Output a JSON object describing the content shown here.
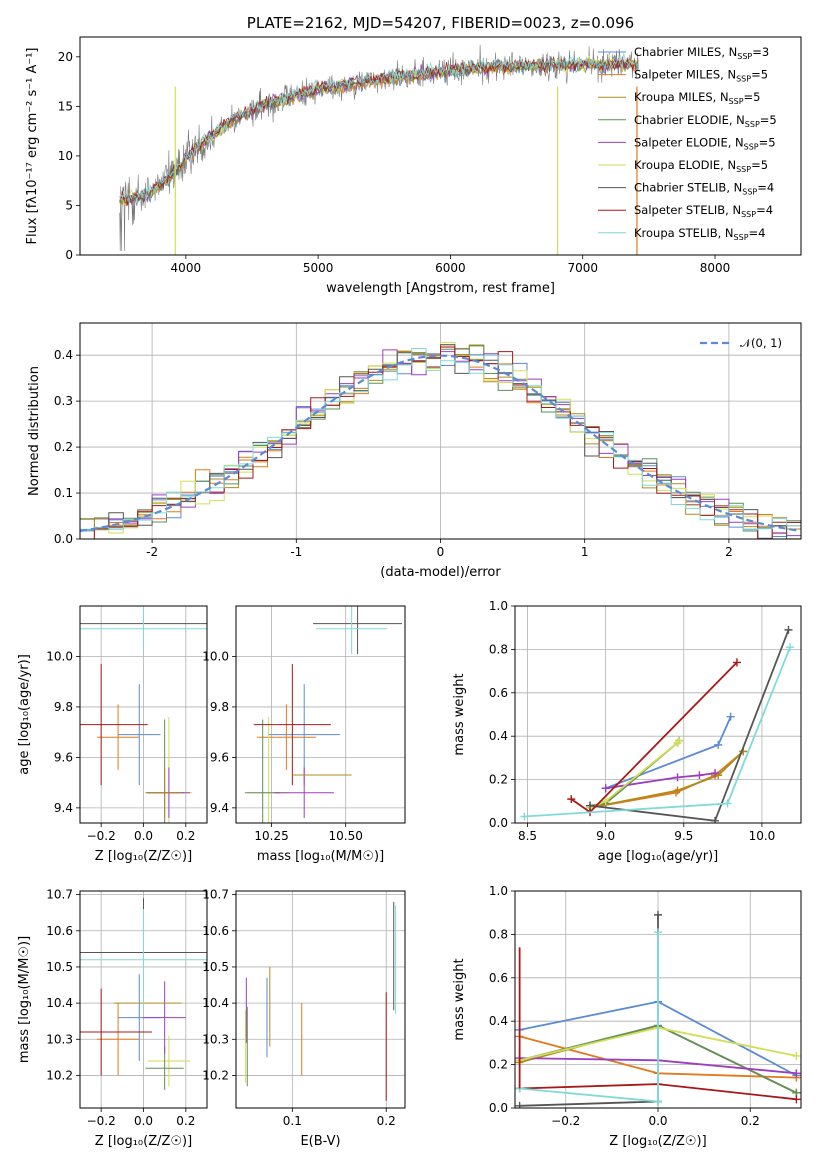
{
  "colors": {
    "Chabrier MILES": "#5b8bd6",
    "Salpeter MILES": "#e07a1f",
    "Kroupa MILES": "#b38a1a",
    "Chabrier ELODIE": "#5f8f5a",
    "Salpeter ELODIE": "#9b3fbf",
    "Kroupa ELODIE": "#d2de55",
    "Chabrier STELIB": "#555555",
    "Salpeter STELIB": "#a81818",
    "Kroupa STELIB": "#7fdada"
  },
  "chart_data": [
    {
      "id": "spectrum",
      "type": "line",
      "title": "PLATE=2162, MJD=54207, FIBERID=0023, z=0.096",
      "xlabel": "wavelength [Angstrom, rest frame]",
      "ylabel": "Flux [fλ10⁻¹⁷ erg cm⁻² s⁻¹ A⁻¹]",
      "xlim": [
        3200,
        8650
      ],
      "ylim": [
        0,
        22
      ],
      "xticks": [
        4000,
        5000,
        6000,
        7000,
        8000
      ],
      "yticks": [
        0,
        5,
        10,
        15,
        20
      ],
      "grid": false,
      "legend_position": "right",
      "legend": [
        {
          "label": "Chabrier MILES, N",
          "sub": "SSP",
          "suffix": "=3"
        },
        {
          "label": "Salpeter MILES, N",
          "sub": "SSP",
          "suffix": "=5"
        },
        {
          "label": "Kroupa MILES, N",
          "sub": "SSP",
          "suffix": "=5"
        },
        {
          "label": "Chabrier ELODIE, N",
          "sub": "SSP",
          "suffix": "=5"
        },
        {
          "label": "Salpeter ELODIE, N",
          "sub": "SSP",
          "suffix": "=5"
        },
        {
          "label": "Kroupa ELODIE, N",
          "sub": "SSP",
          "suffix": "=5"
        },
        {
          "label": "Chabrier STELIB, N",
          "sub": "SSP",
          "suffix": "=4"
        },
        {
          "label": "Salpeter STELIB, N",
          "sub": "SSP",
          "suffix": "=4"
        },
        {
          "label": "Kroupa STELIB, N",
          "sub": "SSP",
          "suffix": "=4"
        }
      ],
      "continuum": [
        [
          3500,
          5.5
        ],
        [
          3700,
          6.0
        ],
        [
          3850,
          7.5
        ],
        [
          3950,
          8.8
        ],
        [
          4050,
          10.5
        ],
        [
          4300,
          13.2
        ],
        [
          4600,
          15.2
        ],
        [
          5000,
          16.7
        ],
        [
          5400,
          17.6
        ],
        [
          5800,
          18.3
        ],
        [
          6200,
          18.9
        ],
        [
          6600,
          19.1
        ],
        [
          7000,
          19.2
        ],
        [
          7400,
          19.3
        ]
      ]
    },
    {
      "id": "residuals",
      "type": "histogram",
      "xlabel": "(data-model)/error",
      "ylabel": "Normed distribution",
      "xlim": [
        -2.5,
        2.5
      ],
      "ylim": [
        0,
        0.47
      ],
      "xticks": [
        -2,
        -1,
        0,
        1,
        2
      ],
      "yticks": [
        0.0,
        0.1,
        0.2,
        0.3,
        0.4
      ],
      "grid": true,
      "reference": "𝒩(0, 1)",
      "legend_position": "top-right"
    },
    {
      "id": "age-vs-Z",
      "type": "scatter",
      "xlabel": "Z [log₁₀(Z/Z☉)]",
      "ylabel": "age  [log₁₀(age/yr)]",
      "xlim": [
        -0.3,
        0.3
      ],
      "ylim": [
        9.34,
        10.2
      ],
      "xticks": [
        -0.2,
        0.0,
        0.2
      ],
      "xticklabels": [
        "−0.2",
        "0.0",
        "0.2"
      ],
      "yticks": [
        9.4,
        9.6,
        9.8,
        10.0
      ],
      "grid": true,
      "points": [
        {
          "model": "Chabrier MILES",
          "x": -0.02,
          "xerr": 0.1,
          "y": 9.69,
          "yerr": 0.2
        },
        {
          "model": "Salpeter MILES",
          "x": -0.12,
          "xerr": 0.1,
          "y": 9.68,
          "yerr": 0.13
        },
        {
          "model": "Kroupa ELODIE",
          "x": 0.12,
          "xerr": 0.11,
          "y": 9.46,
          "yerr": 0.3
        },
        {
          "model": "Chabrier ELODIE",
          "x": 0.1,
          "xerr": 0.09,
          "y": 9.46,
          "yerr": 0.29
        },
        {
          "model": "Salpeter ELODIE",
          "x": 0.12,
          "xerr": 0.1,
          "y": 9.46,
          "yerr": 0.1
        },
        {
          "model": "Kroupa MILES",
          "x": 0.1,
          "xerr": 0.08,
          "y": 9.46,
          "yerr": 0.1
        },
        {
          "model": "Chabrier STELIB",
          "x": 0.0,
          "xerr": 0.3,
          "y": 10.13,
          "yerr": 0.12
        },
        {
          "model": "Salpeter STELIB",
          "x": -0.2,
          "xerr": 0.22,
          "y": 9.73,
          "yerr": 0.24
        },
        {
          "model": "Kroupa STELIB",
          "x": 0.0,
          "xerr": 0.3,
          "y": 10.11,
          "yerr": 0.1
        },
        {
          "model": "Kroupa MILES",
          "x": 0.0,
          "xerr": 0.0,
          "y": 9.53,
          "yerr": 0.0
        }
      ]
    },
    {
      "id": "age-vs-mass",
      "type": "scatter",
      "xlabel": "mass [log₁₀(M/M☉)]",
      "ylabel": "",
      "xlim": [
        10.13,
        10.7
      ],
      "ylim": [
        9.34,
        10.2
      ],
      "xticks": [
        10.25,
        10.5
      ],
      "xticklabels": [
        "10.25",
        "10.50"
      ],
      "yticks": [
        9.4,
        9.6,
        9.8,
        10.0
      ],
      "grid": true,
      "points": [
        {
          "model": "Chabrier MILES",
          "x": 10.36,
          "xerr": 0.12,
          "y": 9.69,
          "yerr": 0.2
        },
        {
          "model": "Salpeter MILES",
          "x": 10.3,
          "xerr": 0.1,
          "y": 9.68,
          "yerr": 0.13
        },
        {
          "model": "Kroupa ELODIE",
          "x": 10.24,
          "xerr": 0.07,
          "y": 9.46,
          "yerr": 0.3
        },
        {
          "model": "Chabrier ELODIE",
          "x": 10.22,
          "xerr": 0.06,
          "y": 9.46,
          "yerr": 0.29
        },
        {
          "model": "Salpeter ELODIE",
          "x": 10.36,
          "xerr": 0.1,
          "y": 9.46,
          "yerr": 0.1
        },
        {
          "model": "Chabrier STELIB",
          "x": 10.54,
          "xerr": 0.15,
          "y": 10.13,
          "yerr": 0.12
        },
        {
          "model": "Salpeter STELIB",
          "x": 10.32,
          "xerr": 0.13,
          "y": 9.73,
          "yerr": 0.24
        },
        {
          "model": "Kroupa STELIB",
          "x": 10.52,
          "xerr": 0.12,
          "y": 10.11,
          "yerr": 0.1
        },
        {
          "model": "Kroupa MILES",
          "x": 10.42,
          "xerr": 0.1,
          "y": 9.53,
          "yerr": 0.0
        }
      ]
    },
    {
      "id": "mass-weight-vs-age",
      "type": "line",
      "xlabel": "age  [log₁₀(age/yr)]",
      "ylabel": "mass weight",
      "xlim": [
        8.42,
        10.25
      ],
      "ylim": [
        0,
        1
      ],
      "xticks": [
        8.5,
        9.0,
        9.5,
        10.0
      ],
      "xticklabels": [
        "8.5",
        "9.0",
        "9.5",
        "10.0"
      ],
      "yticks": [
        0.0,
        0.2,
        0.4,
        0.6,
        0.8,
        1.0
      ],
      "grid": true,
      "series": [
        {
          "model": "Chabrier MILES",
          "x": [
            9.0,
            9.72,
            9.8
          ],
          "y": [
            0.16,
            0.36,
            0.49
          ]
        },
        {
          "model": "Salpeter MILES",
          "x": [
            8.9,
            9.45,
            9.7,
            9.88
          ],
          "y": [
            0.07,
            0.14,
            0.22,
            0.33
          ]
        },
        {
          "model": "Kroupa MILES",
          "x": [
            8.9,
            9.46,
            9.72,
            9.88
          ],
          "y": [
            0.07,
            0.15,
            0.22,
            0.33
          ]
        },
        {
          "model": "Chabrier ELODIE",
          "x": [
            8.9,
            9.0,
            9.46,
            9.47
          ],
          "y": [
            0.08,
            0.09,
            0.37,
            0.38
          ]
        },
        {
          "model": "Salpeter ELODIE",
          "x": [
            9.0,
            9.46,
            9.6,
            9.7
          ],
          "y": [
            0.16,
            0.21,
            0.22,
            0.23
          ]
        },
        {
          "model": "Kroupa ELODIE",
          "x": [
            8.9,
            9.0,
            9.46,
            9.47
          ],
          "y": [
            0.07,
            0.1,
            0.37,
            0.38
          ]
        },
        {
          "model": "Chabrier STELIB",
          "x": [
            8.9,
            9.7,
            10.17
          ],
          "y": [
            0.08,
            0.01,
            0.89
          ]
        },
        {
          "model": "Salpeter STELIB",
          "x": [
            8.78,
            8.9,
            9.84
          ],
          "y": [
            0.11,
            0.05,
            0.74
          ]
        },
        {
          "model": "Kroupa STELIB",
          "x": [
            8.48,
            9.78,
            10.18
          ],
          "y": [
            0.03,
            0.09,
            0.81
          ]
        }
      ]
    },
    {
      "id": "mass-vs-Z",
      "type": "scatter",
      "xlabel": "Z [log₁₀(Z/Z☉)]",
      "ylabel": "mass [log₁₀(M/M☉)]",
      "xlim": [
        -0.3,
        0.3
      ],
      "ylim": [
        10.11,
        10.71
      ],
      "xticks": [
        -0.2,
        0.0,
        0.2
      ],
      "xticklabels": [
        "−0.2",
        "0.0",
        "0.2"
      ],
      "yticks": [
        10.2,
        10.3,
        10.4,
        10.5,
        10.6,
        10.7
      ],
      "grid": true,
      "points": [
        {
          "model": "Chabrier MILES",
          "x": -0.02,
          "xerr": 0.1,
          "y": 10.36,
          "yerr": 0.12
        },
        {
          "model": "Salpeter MILES",
          "x": -0.12,
          "xerr": 0.1,
          "y": 10.3,
          "yerr": 0.1
        },
        {
          "model": "Kroupa ELODIE",
          "x": 0.12,
          "xerr": 0.1,
          "y": 10.24,
          "yerr": 0.07
        },
        {
          "model": "Chabrier ELODIE",
          "x": 0.1,
          "xerr": 0.09,
          "y": 10.22,
          "yerr": 0.06
        },
        {
          "model": "Salpeter ELODIE",
          "x": 0.1,
          "xerr": 0.1,
          "y": 10.36,
          "yerr": 0.1
        },
        {
          "model": "Kroupa MILES",
          "x": 0.02,
          "xerr": 0.16,
          "y": 10.4,
          "yerr": 0.0
        },
        {
          "model": "Chabrier STELIB",
          "x": 0.0,
          "xerr": 0.3,
          "y": 10.54,
          "yerr": 0.15
        },
        {
          "model": "Salpeter STELIB",
          "x": -0.2,
          "xerr": 0.24,
          "y": 10.32,
          "yerr": 0.12
        },
        {
          "model": "Kroupa STELIB",
          "x": 0.0,
          "xerr": 0.3,
          "y": 10.52,
          "yerr": 0.14
        }
      ]
    },
    {
      "id": "mass-vs-EBV",
      "type": "scatter",
      "xlabel": "E(B-V)",
      "ylabel": "",
      "xlim": [
        0.04,
        0.22
      ],
      "ylim": [
        10.11,
        10.71
      ],
      "xticks": [
        0.1,
        0.2
      ],
      "xticklabels": [
        "0.1",
        "0.2"
      ],
      "yticks": [
        10.2,
        10.3,
        10.4,
        10.5,
        10.6,
        10.7
      ],
      "grid": true,
      "points": [
        {
          "model": "Kroupa ELODIE",
          "x": 0.05,
          "xerr": 0,
          "y": 10.28,
          "yerr": 0.1
        },
        {
          "model": "Salpeter ELODIE",
          "x": 0.051,
          "xerr": 0,
          "y": 10.38,
          "yerr": 0.09
        },
        {
          "model": "Chabrier ELODIE",
          "x": 0.052,
          "xerr": 0,
          "y": 10.28,
          "yerr": 0.11
        },
        {
          "model": "Chabrier MILES",
          "x": 0.073,
          "xerr": 0,
          "y": 10.36,
          "yerr": 0.11
        },
        {
          "model": "Kroupa MILES",
          "x": 0.076,
          "xerr": 0,
          "y": 10.39,
          "yerr": 0.11
        },
        {
          "model": "Salpeter MILES",
          "x": 0.11,
          "xerr": 0,
          "y": 10.3,
          "yerr": 0.1
        },
        {
          "model": "Salpeter STELIB",
          "x": 0.2,
          "xerr": 0,
          "y": 10.28,
          "yerr": 0.15
        },
        {
          "model": "Chabrier STELIB",
          "x": 0.208,
          "xerr": 0,
          "y": 10.53,
          "yerr": 0.15
        },
        {
          "model": "Kroupa STELIB",
          "x": 0.21,
          "xerr": 0,
          "y": 10.52,
          "yerr": 0.15
        }
      ]
    },
    {
      "id": "mass-weight-vs-Z",
      "type": "line",
      "xlabel": "Z [log₁₀(Z/Z☉)]",
      "ylabel": "mass weight",
      "xlim": [
        -0.31,
        0.31
      ],
      "ylim": [
        0,
        1
      ],
      "xticks": [
        -0.2,
        0.0,
        0.2
      ],
      "xticklabels": [
        "−0.2",
        "0.0",
        "0.2"
      ],
      "yticks": [
        0.0,
        0.2,
        0.4,
        0.6,
        0.8,
        1.0
      ],
      "grid": true,
      "series": [
        {
          "model": "Chabrier MILES",
          "x": [
            -0.3,
            0.0,
            0.3
          ],
          "y": [
            0.36,
            0.49,
            0.15
          ]
        },
        {
          "model": "Salpeter MILES",
          "x": [
            -0.3,
            0.0,
            0.3
          ],
          "y": [
            0.33,
            0.16,
            0.14
          ]
        },
        {
          "model": "Kroupa MILES",
          "x": [
            -0.3,
            0.0,
            0.3
          ],
          "y": [
            0.21,
            0.38,
            0.07
          ]
        },
        {
          "model": "Chabrier ELODIE",
          "x": [
            -0.3,
            0.0,
            0.3
          ],
          "y": [
            0.22,
            0.38,
            0.07
          ]
        },
        {
          "model": "Salpeter ELODIE",
          "x": [
            -0.3,
            0.0,
            0.3
          ],
          "y": [
            0.23,
            0.22,
            0.16
          ]
        },
        {
          "model": "Kroupa ELODIE",
          "x": [
            -0.3,
            0.0,
            0.3
          ],
          "y": [
            0.22,
            0.37,
            0.24
          ]
        },
        {
          "model": "Chabrier STELIB",
          "x": [
            -0.3,
            0.0,
            0.0
          ],
          "y": [
            0.01,
            0.03,
            0.89
          ]
        },
        {
          "model": "Salpeter STELIB",
          "x": [
            -0.3,
            0.0,
            0.3
          ],
          "y": [
            0.09,
            0.11,
            0.04
          ]
        },
        {
          "model": "Kroupa STELIB",
          "x": [
            -0.3,
            0.0,
            0.0
          ],
          "y": [
            0.09,
            0.03,
            0.81
          ]
        }
      ]
    }
  ]
}
